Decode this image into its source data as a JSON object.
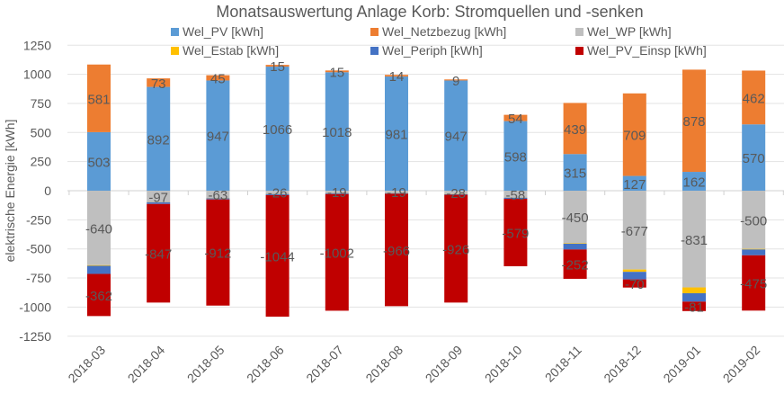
{
  "chart_data": {
    "type": "bar",
    "stacked": true,
    "title": "Monatsauswertung Anlage Korb: Stromquellen und -senken",
    "ylabel": "elektrische Energie [kWh]",
    "xlabel": "",
    "ylim": [
      -1250,
      1250
    ],
    "yticks": [
      1250,
      1000,
      750,
      500,
      250,
      0,
      -250,
      -500,
      -750,
      -1000,
      -1250
    ],
    "grid": true,
    "legend_position": "top",
    "categories": [
      "2018-03",
      "2018-04",
      "2018-05",
      "2018-06",
      "2018-07",
      "2018-08",
      "2018-09",
      "2018-10",
      "2018-11",
      "2018-12",
      "2019-01",
      "2019-02"
    ],
    "series": [
      {
        "name": "Wel_PV [kWh]",
        "color": "#5b9bd5",
        "labeled": true,
        "values": [
          503,
          892,
          947,
          1066,
          1018,
          981,
          947,
          598,
          315,
          127,
          162,
          570
        ]
      },
      {
        "name": "Wel_Netzbezug [kWh]",
        "color": "#ed7d31",
        "labeled": true,
        "values": [
          581,
          73,
          45,
          15,
          15,
          14,
          9,
          54,
          439,
          709,
          878,
          462
        ]
      },
      {
        "name": "Wel_WP [kWh]",
        "color": "#bfbfbf",
        "labeled": true,
        "values": [
          -640,
          -97,
          -63,
          -26,
          -19,
          -19,
          -28,
          -58,
          -450,
          -677,
          -831,
          -500
        ]
      },
      {
        "name": "Wel_Estab [kWh]",
        "color": "#ffc000",
        "labeled": false,
        "values": [
          -5,
          -2,
          -2,
          -2,
          -2,
          -2,
          -2,
          -2,
          -5,
          -20,
          -50,
          -5
        ]
      },
      {
        "name": "Wel_Periph [kWh]",
        "color": "#4472c4",
        "labeled": false,
        "values": [
          -70,
          -15,
          -10,
          -10,
          -8,
          -5,
          -5,
          -10,
          -50,
          -65,
          -72,
          -50
        ]
      },
      {
        "name": "Wel_PV_Einsp [kWh]",
        "color": "#c00000",
        "labeled": true,
        "values": [
          -362,
          -847,
          -912,
          -1044,
          -1002,
          -966,
          -926,
          -579,
          -252,
          -70,
          -81,
          -475
        ]
      }
    ]
  }
}
